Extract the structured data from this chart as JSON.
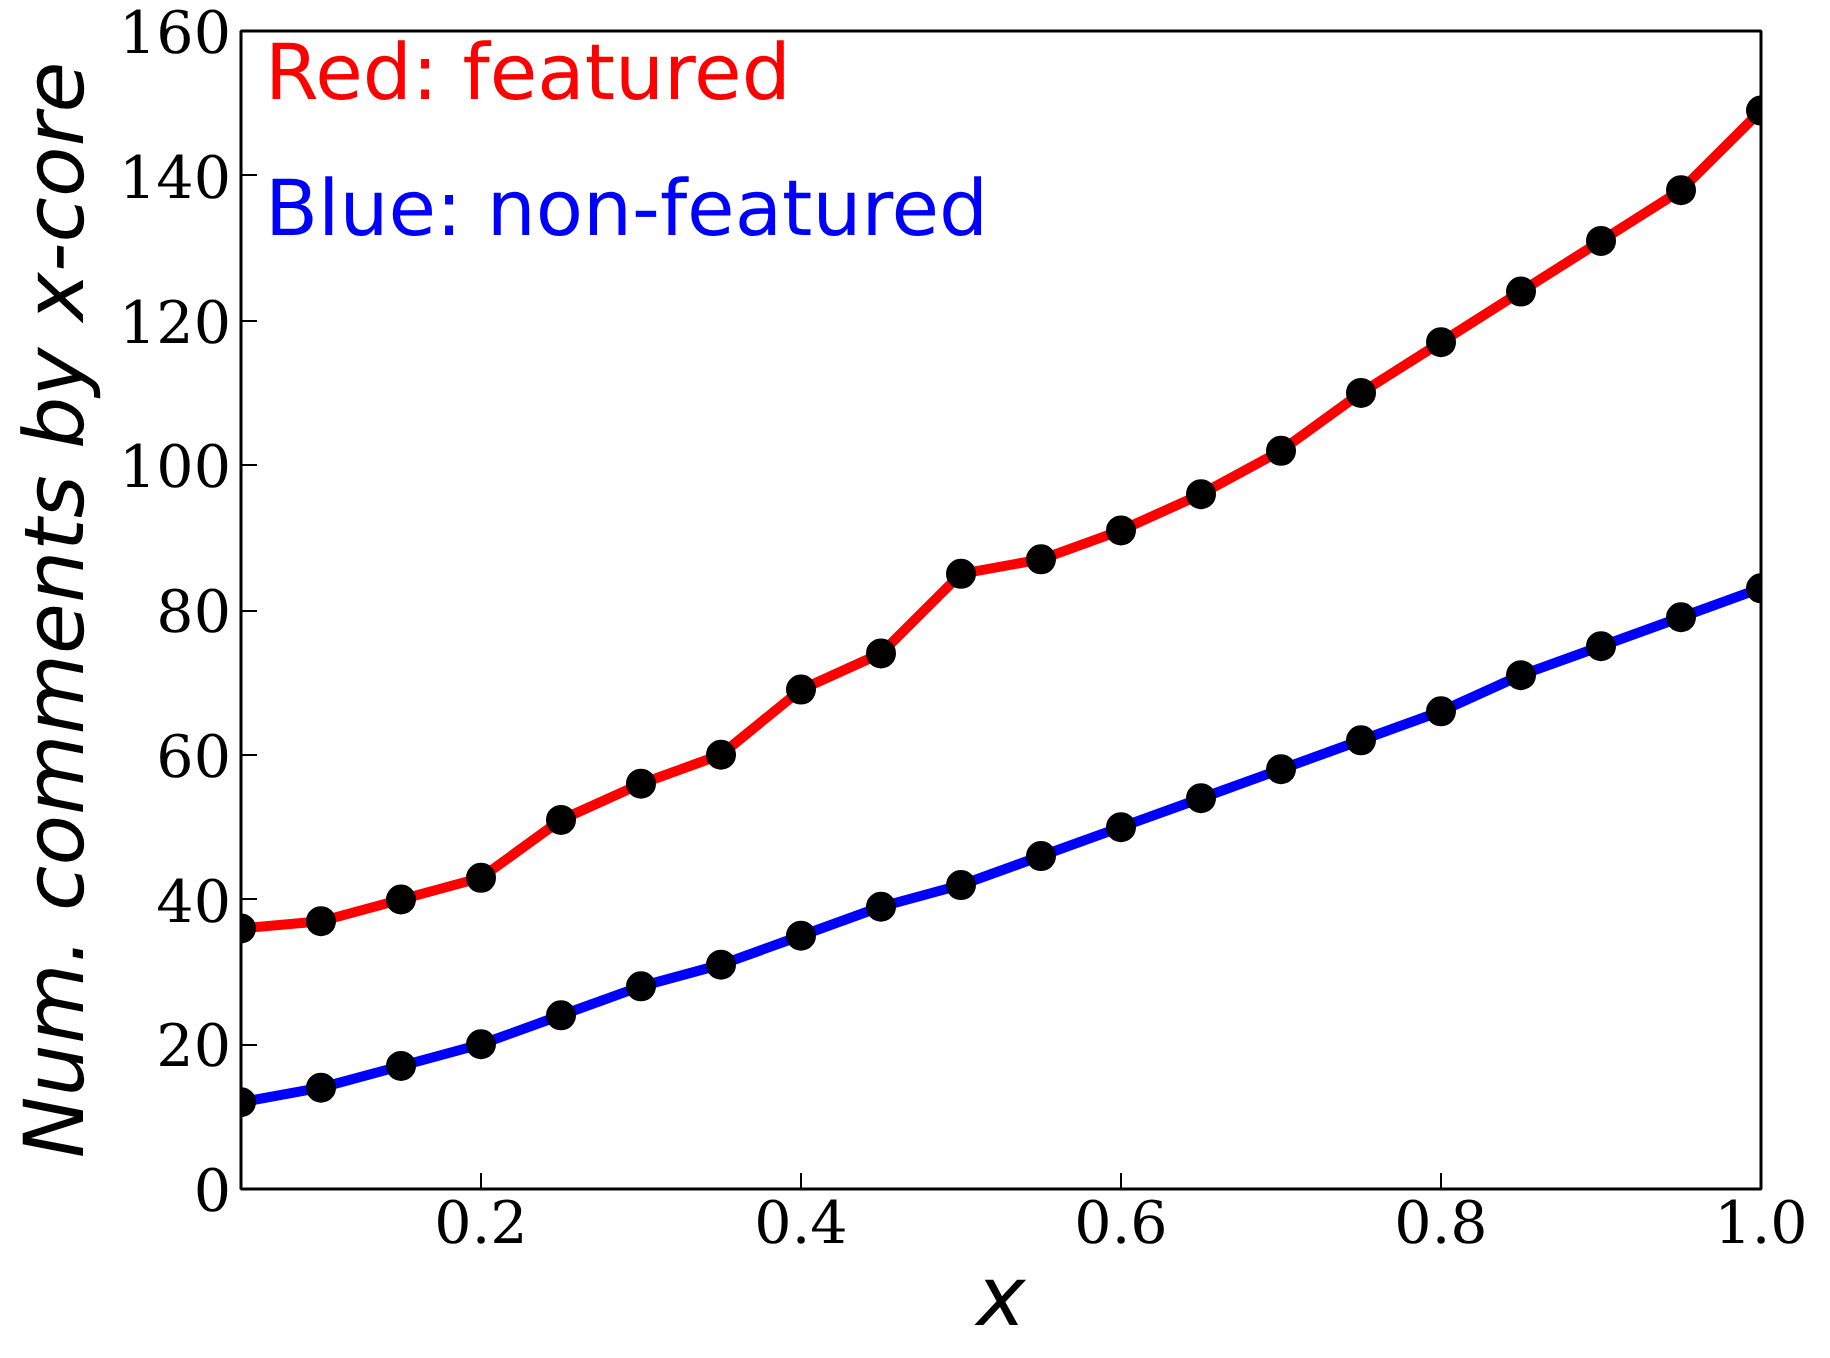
{
  "chart_data": {
    "type": "line",
    "xlabel": "x",
    "ylabel": "Num. comments by x-core",
    "x": [
      0.05,
      0.1,
      0.15,
      0.2,
      0.25,
      0.3,
      0.35,
      0.4,
      0.45,
      0.5,
      0.55,
      0.6,
      0.65,
      0.7,
      0.75,
      0.8,
      0.85,
      0.9,
      0.95,
      1.0
    ],
    "series": [
      {
        "name": "Red: featured",
        "color": "#ff0000",
        "values": [
          36,
          37,
          40,
          43,
          51,
          56,
          60,
          69,
          74,
          85,
          87,
          91,
          96,
          102,
          110,
          117,
          124,
          131,
          138,
          149
        ]
      },
      {
        "name": "Blue: non-featured",
        "color": "#0000ff",
        "values": [
          12,
          14,
          17,
          20,
          24,
          28,
          31,
          35,
          39,
          42,
          46,
          50,
          54,
          58,
          62,
          66,
          71,
          75,
          79,
          83
        ]
      }
    ],
    "xlim": [
      0.05,
      1.0
    ],
    "ylim": [
      0,
      160
    ],
    "xticks": [
      0.2,
      0.4,
      0.6,
      0.8,
      {
        "value": 1.0,
        "label": "1.0"
      }
    ],
    "yticks": [
      0,
      20,
      40,
      60,
      80,
      100,
      120,
      140,
      160
    ],
    "marker": "circle",
    "line_style": "solid",
    "legend": "top left",
    "grid": false
  }
}
